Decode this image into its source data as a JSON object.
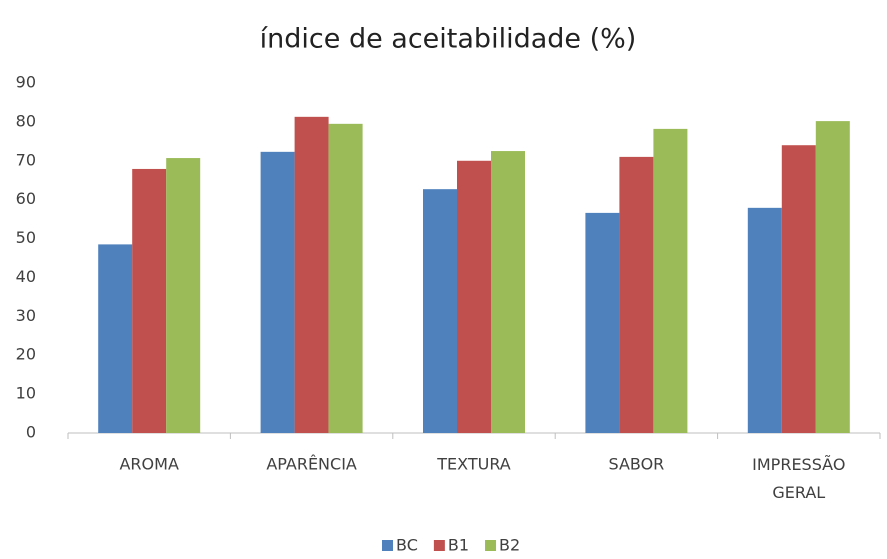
{
  "chart_data": {
    "type": "bar",
    "title": "índice de aceitabilidade (%)",
    "categories": [
      "AROMA",
      "APARÊNCIA",
      "TEXTURA",
      "SABOR",
      "IMPRESSÃO GERAL"
    ],
    "series": [
      {
        "name": "BC",
        "color": "#4f81bd",
        "values": [
          48.5,
          72.3,
          62.7,
          56.6,
          57.9
        ]
      },
      {
        "name": "B1",
        "color": "#c0504d",
        "values": [
          67.9,
          81.3,
          70,
          71,
          74
        ]
      },
      {
        "name": "B2",
        "color": "#9bbb59",
        "values": [
          70.7,
          79.5,
          72.5,
          78.2,
          80.2
        ]
      }
    ],
    "ylim": [
      0,
      90
    ],
    "yticks": [
      0,
      10,
      20,
      30,
      40,
      50,
      60,
      70,
      80,
      90
    ],
    "grid": false,
    "legend": "bottom"
  }
}
